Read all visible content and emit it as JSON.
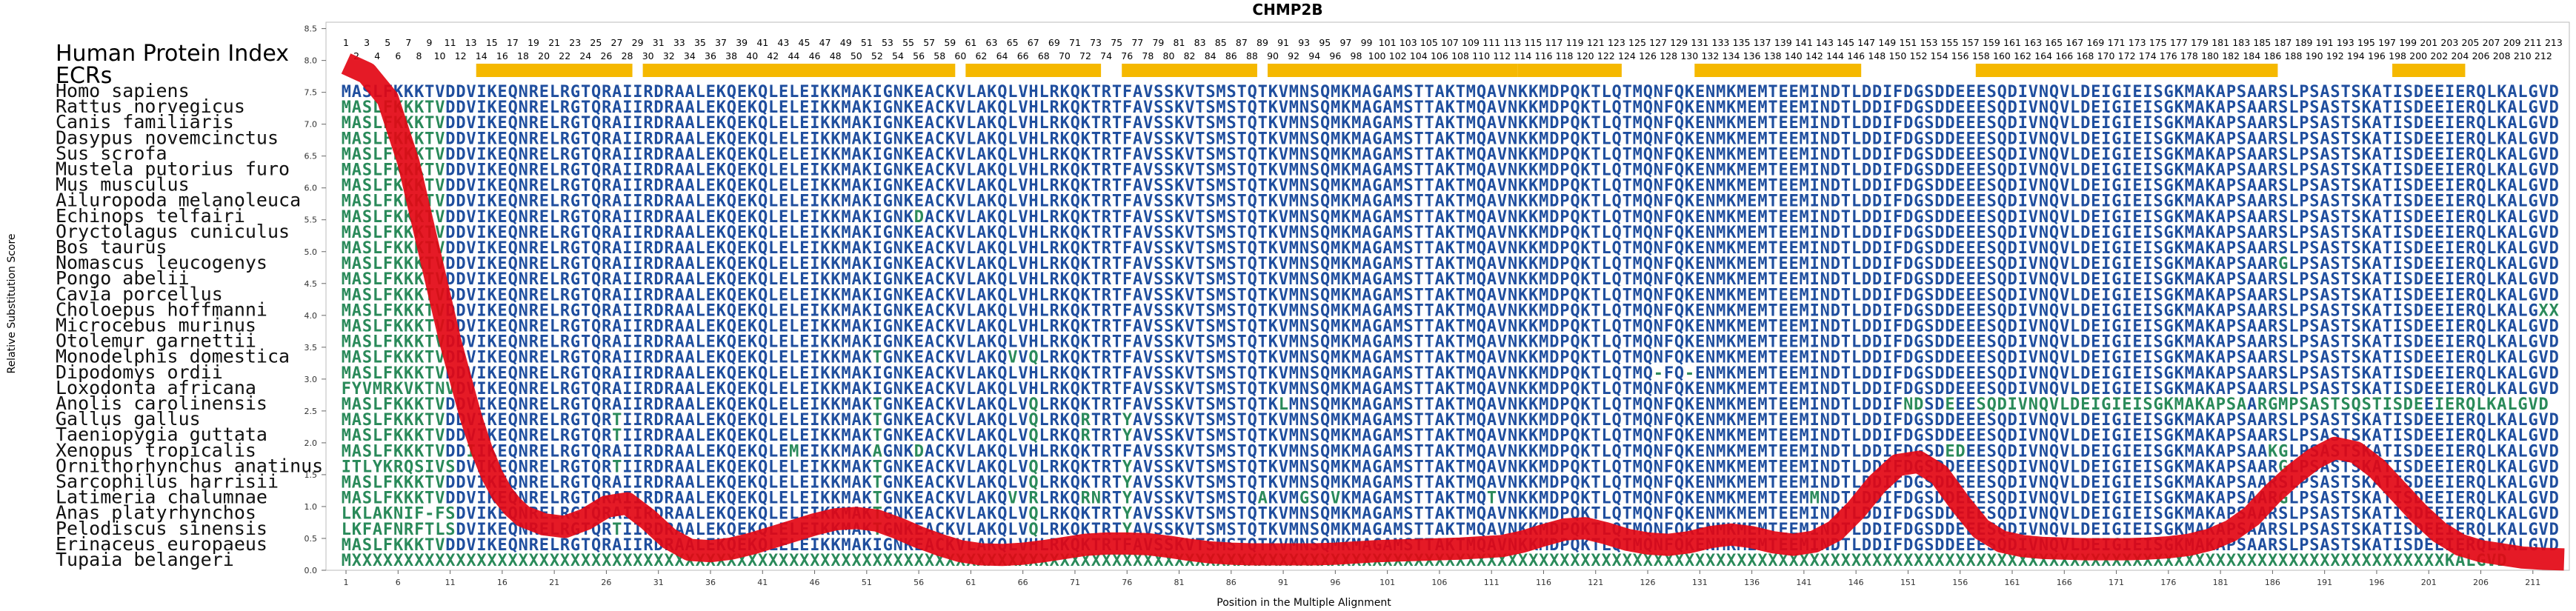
{
  "chart_data": {
    "type": "line",
    "title": "CHMP2B",
    "xlabel": "Position in the Multiple Alignment",
    "ylabel": "Relative Substitution Score",
    "ylim": [
      0,
      8.6
    ],
    "xlim": [
      0.5,
      214.5
    ],
    "yticks": [
      "0.0",
      "0.5",
      "1.0",
      "1.5",
      "2.0",
      "2.5",
      "3.0",
      "3.5",
      "4.0",
      "4.5",
      "5.0",
      "5.5",
      "6.0",
      "6.5",
      "7.0",
      "7.5",
      "8.0",
      "8.5"
    ],
    "xticks": [
      1,
      6,
      11,
      16,
      21,
      26,
      31,
      36,
      41,
      46,
      51,
      56,
      61,
      66,
      71,
      76,
      81,
      86,
      91,
      96,
      101,
      106,
      111,
      116,
      121,
      126,
      131,
      136,
      141,
      146,
      151,
      156,
      161,
      166,
      171,
      176,
      181,
      186,
      191,
      196,
      201,
      206,
      211
    ],
    "index_label": "Human Protein Index",
    "ecr_label": "ECRs",
    "ecr_ranges": [
      [
        14,
        28
      ],
      [
        30,
        59
      ],
      [
        61,
        73
      ],
      [
        76,
        88
      ],
      [
        90,
        113
      ],
      [
        114,
        123
      ],
      [
        131,
        146
      ],
      [
        158,
        186
      ],
      [
        198,
        204
      ]
    ],
    "top_index_row1": [
      1,
      3,
      5,
      7,
      9,
      11,
      13,
      15,
      17,
      19,
      21,
      23,
      25,
      27,
      29,
      31,
      33,
      35,
      37,
      39,
      41,
      43,
      45,
      47,
      49,
      51,
      53,
      55,
      57,
      59,
      61,
      63,
      65,
      67,
      69,
      71,
      73,
      75,
      77,
      79,
      81,
      83,
      85,
      87,
      89,
      91,
      93,
      95,
      97,
      99,
      101,
      103,
      105,
      107,
      109,
      111,
      113,
      115,
      117,
      119,
      121,
      123,
      125,
      127,
      129,
      131,
      133,
      135,
      137,
      139,
      141,
      143,
      145,
      147,
      149,
      151,
      153,
      155,
      157,
      159,
      161,
      163,
      165,
      167,
      169,
      171,
      173,
      175,
      177,
      179,
      181,
      183,
      185,
      187,
      189,
      191,
      193,
      195,
      197,
      199,
      201,
      203,
      205,
      207,
      209,
      211,
      213
    ],
    "top_index_row2": [
      2,
      4,
      6,
      8,
      10,
      12,
      14,
      16,
      18,
      20,
      22,
      24,
      26,
      28,
      30,
      32,
      34,
      36,
      38,
      40,
      42,
      44,
      46,
      48,
      50,
      52,
      54,
      56,
      58,
      60,
      62,
      64,
      66,
      68,
      70,
      72,
      74,
      76,
      78,
      80,
      82,
      84,
      86,
      88,
      90,
      92,
      94,
      96,
      98,
      100,
      102,
      104,
      106,
      108,
      110,
      112,
      114,
      116,
      118,
      120,
      122,
      124,
      126,
      128,
      130,
      132,
      134,
      136,
      138,
      140,
      142,
      144,
      146,
      148,
      150,
      152,
      154,
      156,
      158,
      160,
      162,
      164,
      166,
      168,
      170,
      172,
      174,
      176,
      178,
      180,
      182,
      184,
      186,
      188,
      190,
      192,
      194,
      196,
      198,
      200,
      202,
      204,
      206,
      208,
      210,
      212
    ],
    "series": [
      {
        "x": [
          1,
          3,
          5,
          7,
          9,
          10,
          11,
          12,
          13,
          14,
          15,
          16,
          17,
          18,
          20,
          22,
          24,
          26,
          28,
          30,
          32,
          34,
          36,
          38,
          40,
          42,
          44,
          46,
          48,
          50,
          52,
          54,
          56,
          58,
          60,
          62,
          64,
          66,
          68,
          70,
          72,
          74,
          76,
          78,
          80,
          82,
          84,
          86,
          88,
          90,
          92,
          94,
          96,
          98,
          100,
          102,
          104,
          106,
          108,
          110,
          112,
          114,
          116,
          118,
          120,
          122,
          124,
          126,
          128,
          130,
          132,
          134,
          136,
          138,
          140,
          142,
          144,
          146,
          148,
          150,
          152,
          154,
          156,
          158,
          160,
          162,
          164,
          166,
          168,
          170,
          172,
          174,
          176,
          178,
          180,
          182,
          184,
          186,
          188,
          190,
          192,
          194,
          196,
          198,
          200,
          202,
          204,
          206,
          208,
          210,
          212,
          214
        ],
        "y": [
          7.95,
          7.8,
          7.4,
          6.4,
          5.0,
          4.3,
          3.6,
          3.0,
          2.4,
          1.9,
          1.5,
          1.2,
          1.0,
          0.85,
          0.72,
          0.68,
          0.8,
          1.0,
          1.05,
          0.8,
          0.5,
          0.32,
          0.3,
          0.34,
          0.42,
          0.52,
          0.62,
          0.72,
          0.8,
          0.82,
          0.78,
          0.66,
          0.52,
          0.4,
          0.3,
          0.25,
          0.24,
          0.26,
          0.3,
          0.35,
          0.4,
          0.42,
          0.42,
          0.41,
          0.37,
          0.32,
          0.28,
          0.26,
          0.25,
          0.25,
          0.25,
          0.25,
          0.26,
          0.28,
          0.3,
          0.31,
          0.32,
          0.33,
          0.34,
          0.36,
          0.38,
          0.45,
          0.55,
          0.64,
          0.66,
          0.58,
          0.48,
          0.42,
          0.4,
          0.44,
          0.52,
          0.56,
          0.52,
          0.44,
          0.4,
          0.45,
          0.62,
          0.95,
          1.35,
          1.65,
          1.7,
          1.5,
          1.05,
          0.65,
          0.45,
          0.38,
          0.35,
          0.34,
          0.33,
          0.33,
          0.33,
          0.34,
          0.36,
          0.4,
          0.48,
          0.62,
          0.85,
          1.2,
          1.5,
          1.75,
          1.92,
          1.85,
          1.6,
          1.25,
          0.9,
          0.6,
          0.4,
          0.3,
          0.25,
          0.2,
          0.18,
          0.17
        ]
      }
    ],
    "species": [
      "Homo sapiens",
      "Rattus norvegicus",
      "Canis familiaris",
      "Dasypus novemcinctus",
      "Sus scrofa",
      "Mustela putorius furo",
      "Mus musculus",
      "Ailuropoda melanoleuca",
      "Echinops telfairi",
      "Oryctolagus cuniculus",
      "Bos taurus",
      "Nomascus leucogenys",
      "Pongo abelii",
      "Cavia porcellus",
      "Choloepus hoffmanni",
      "Microcebus murinus",
      "Otolemur garnettii",
      "Monodelphis domestica",
      "Dipodomys ordii",
      "Loxodonta africana",
      "Anolis carolinensis",
      "Gallus gallus",
      "Taeniopygia guttata",
      "Xenopus tropicalis",
      "Ornithorhynchus anatinus",
      "Sarcophilus harrisii",
      "Latimeria chalumnae",
      "Anas platyrhynchos",
      "Pelodiscus sinensis",
      "Erinaceus europaeus",
      "Tupaia belangeri"
    ],
    "sequences": [
      "MASLFKKKTVDDVIKEQNRELRGTQRAIIRDRAALEKQEKQLELEIKKMAKIGNKEACKVLAKQLVHLRKQKTRTFAVSSKVTSMSTQTKVMNSQMKMAGAMSTTAKTMQAVNKKMDPQKTLQTMQNFQKENMKMEMTEEMINDTLDDIFDGSDDEEESQDIVNQVLDEIGIEISGKMAKAPSAARSLPSASTSKATISDEEIERQLKALGVD",
      "MASLFKKKTVDDVIKEQNRELRGTQRAIIRDRAALEKQEKQLELEIKKMAKIGNKEACKVLAKQLVHLRKQKTRTFAVSSKVTSMSTQTKVMNSQMKMAGAMSTTAKTMQAVNKKMDPQKTLQTMQNFQKENMKMEMTEEMINDTLDDIFDGSDDEEESQDIVNQVLDEIGIEISGKMAKAPSAARSLPSASTSKATISDEEIERQLKALGVD",
      "MASLFKKKTVDDVIKEQNRELRGTQRAIIRDRAALEKQEKQLELEIKKMAKIGNKEACKVLAKQLVHLRKQKTRTFAVSSKVTSMSTQTKVMNSQMKMAGAMSTTAKTMQAVNKKMDPQKTLQTMQNFQKENMKMEMTEEMINDTLDDIFDGSDDEEESQDIVNQVLDEIGIEISGKMAKAPSAARSLPSASTSKATISDEEIERQLKALGVD",
      "MASLFKKKTVDDVIKEQNRELRGTQRAIIRDRAALEKQEKQLELEIKKMAKIGNKEACKVLAKQLVHLRKQKTRTFAVSSKVTSMSTQTKVMNSQMKMAGAMSTTAKTMQAVNKKMDPQKTLQTMQNFQKENMKMEMTEEMINDTLDDIFDGSDDEEESQDIVNQVLDEIGIEISGKMAKAPSAARSLPSASTSKATISDEEIERQLKALGVD",
      "MASLFKKKTVDDVIKEQNRELRGTQRAIIRDRAALEKQEKQLELEIKKMAKIGNKEACKVLAKQLVHLRKQKTRTFAVSSKVTSMSTQTKVMNSQMKMAGAMSTTAKTMQAVNKKMDPQKTLQTMQNFQKENMKMEMTEEMINDTLDDIFDGSDDEEESQDIVNQVLDEIGIEISGKMAKAPSAARSLPSASTSKATISDEEIERQLKALGVD",
      "MASLFKKKTVDDVIKEQNRELRGTQRAIIRDRAALEKQEKQLELEIKKMAKIGNKEACKVLAKQLVHLRKQKTRTFAVSSKVTSMSTQTKVMNSQMKMAGAMSTTAKTMQAVNKKMDPQKTLQTMQNFQKENMKMEMTEEMINDTLDDIFDGSDDEEESQDIVNQVLDEIGIEISGKMAKAPSAARSLPSASTSKATISDEEIERQLKALGVD",
      "MASLFKKKTVDDVIKEQNRELRGTQRAIIRDRAALEKQEKQLELEIKKMAKIGNKEACKVLAKQLVHLRKQKTRTFAVSSKVTSMSTQTKVMNSQMKMAGAMSTTAKTMQAVNKKMDPQKTLQTMQNFQKENMKMEMTEEMINDTLDDIFDGSDDEEESQDIVNQVLDEIGIEISGKMAKAPSAARSLPSASTSKATISDEEIERQLKALGVD",
      "MASLFKKKTVDDVIKEQNRELRGTQRAIIRDRAALEKQEKQLELEIKKMAKIGNKEACKVLAKQLVHLRKQKTRTFAVSSKVTSMSTQTKVMNSQMKMAGAMSTTAKTMQAVNKKMDPQKTLQTMQNFQKENMKMEMTEEMINDTLDDIFDGSDDEEESQDIVNQVLDEIGIEISGKMAKAPSAARSLPSASTSKATISDEEIERQLKALGVD",
      "MASLFKKKTVDDVIKEQNRELRGTQRAIIRDRAALEKQEKQLELEIKKMAKIGNKDACKVLAKQLVHLRKQKTRTFAVSSKVTSMSTQTKVMNSQMKMAGAMSTTAKTMQAVNKKMDPQKTLQTMQNFQKENMKMEMTEEMINDTLDDIFDGSDDEEESQDIVNQVLDEIGIEISGKMAKAPSAARSLPSASTSKATISDEEIERQLKALGVD",
      "MASLFKKKTVDDVIKEQNRELRGTQRAIIRDRAALEKQEKQLELEIKKMAKIGNKEACKVLAKQLVHLRKQKTRTFAVSSKVTSMSTQTKVMNSQMKMAGAMSTTAKTMQAVNKKMDPQKTLQTMQNFQKENMKMEMTEEMINDTLDDIFDGSDDEEESQDIVNQVLDEIGIEISGKMAKAPSAARSLPSASTSKATISDEEIERQLKALGVD",
      "MASLFKKKTVDDVIKEQNRELRGTQRAIIRDRAALEKQEKQLELEIKKMAKIGNKEACKVLAKQLVHLRKQKTRTFAVSSKVTSMSTQTKVMNSQMKMAGAMSTTAKTMQAVNKKMDPQKTLQTMQNFQKENMKMEMTEEMINDTLDDIFDGSDDEEESQDIVNQVLDEIGIEISGKMAKAPSAARSLPSASTSKATISDEEIERQLKALGVD",
      "MASLFKKKTVDDVIKEQNRELRGTQRAIIRDRAALEKQEKQLELEIKKMAKIGNKEACKVLAKQLVHLRKQKTRTFAVSSKVTSMSTQTKVMNSQMKMAGAMSTTAKTMQAVNKKMDPQKTLQTMQNFQKENMKMEMTEEMINDTLDDIFDGSDDEEESQDIVNQVLDEIGIEISGKMAKAPSAARGLPSASTSKATISDEEIERQLKALGVD",
      "MASLFKKKTVDDVIKEQNRELRGTQRAIIRDRAALEKQEKQLELEIKKMAKIGNKEACKVLAKQLVHLRKQKTRTFAVSSKVTSMSTQTKVMNSQMKMAGAMSTTAKTMQAVNKKMDPQKTLQTMQNFQKENMKMEMTEEMINDTLDDIFDGSDDEEESQDIVNQVLDEIGIEISGKMAKAPSAARSLPSASTSKATISDEEIERQLKALGVD",
      "MASLFKKKTVDDVIKEQNRELRGTQRAIIRDRAALEKQEKQLELEIKKMAKIGNKEACKVLAKQLVHLRKQKTRTFAVSSKVTSMSTQTKVMNSQMKMAGAMSTTAKTMQAVNKKMDPQKTLQTMQNFQKENMKMEMTEEMINDTLDDIFDGSDDEEESQDIVNQVLDEIGIEISGKMAKAPSAARSLPSASTSKATISDEEIERQLKALGVD",
      "MASLFKKKTVDDVIKEQNRELRGTQRAIIRDRAALEKQEKQLELEIKKMAKIGNKEACKVLAKQLVHLRKQKTRTFAVSSKVTSMSTQTKVMNSQMKMAGAMSTTAKTMQAVNKKMDPQKTLQTMQNFQKENMKMEMTEEMINDTLDDIFDGSDDEEESQDIVNQVLDEIGIEISGKMAKAPSAARSLPSASTSKATISDEEIERQLKALGXX",
      "MASLFKKKTVDDVIKEQNRELRGTQRAIIRDRAALEKQEKQLELEIKKMAKIGNKEACKVLAKQLVHLRKQKTRTFAVSSKVTSMSTQTKVMNSQMKMAGAMSTTAKTMQAVNKKMDPQKTLQTMQNFQKENMKMEMTEEMINDTLDDIFDGSDDEEESQDIVNQVLDEIGIEISGKMAKAPSAARSLPSASTSKATISDEEIERQLKALGVD",
      "MASLFKKKTVDDVIKEQNRELRGTQRAIIRDRAALEKQEKQLELEIKKMAKIGNKEACKVLAKQLVHLRKQKTRTFAVSSKVTSMSTQTKVMNSQMKMAGAMSTTAKTMQAVNKKMDPQKTLQTMQNFQKENMKMEMTEEMINDTLDDIFDGSDDEEESQDIVNQVLDEIGIEISGKMAKAPSAARSLPSASTSKATISDEEIERQLKALGVD",
      "MASLFKKKTVDDVIKEQNRELRGTQRAIIRDRAALEKQEKQLELEIKKMAKTGNKEACKVLAKQVVQLRKQKTRTFAVSSKVTSMSTQTKVMNSQMKMAGAMSTTAKTMQAVNKKMDPQKTLQTMQNFQKENMKMEMTEEMINDTLDDIFDGSDDEEESQDIVNQVLDEIGIEISGKMAKAPSAARSLPSASTSKATISDEEIERQLKALGVD",
      "MASLFKKKTVDDVIKEQNRELRGTQRAIIRDRAALEKQEKQLELEIKKMAKIGNKEACKVLAKQLVHLRKQKTRTFAVSSKVTSMSTQTKVMNSQMKMAGAMSTTAKTMQAVNKKMDPQKTLQTMQ-FQ-ENMKMEMTEEMINDTLDDIFDGSDDEEESQDIVNQVLDEIGIEISGKMAKAPSAARSLPSASTSKATISDEEIERQLKALGVD",
      "FYVMRKVKTNVDVIKEQNRELRGTQRAIIRDRAALEKQEKQLELEIKKMAKIGNKEACKVLAKQLVHLRKQKTRTFAVSSKVTSMSTQTKVMNSQMKMAGAMSTTAKTMQAVNKKMDPQKTLQTMQNFQKENMKMEMTEEMINDTLDDIFDGSDDEEESQDIVNQVLDEIGIEISGKMAKAPSAARSLPSASTSKATISDEEIERQLKALGVD",
      "MASLFKKKTVDDVIKEQNRELRGTQRAIIRDRAALEKQEKQLELEIKKMAKTGNKEACKVLAKQLVQLRKQKTRTFAVSSKVTSMSTQTKLMNSQMKMAGAMSTTAKTMQAVNKKMDPQKTLQTMQNFQKENMKMEMTEEMINDTLDDIFNDSDEEESQDIVNQVLDEIGIEISGKMAKAPSAARGMPSASTSQSTISDEEIERQLKALGVD",
      "MASLFKKKTVDDVIKEQNRELRGTQRTIIRDRAALEKQEKQLELEIKKMAKTGNKEACKVLAKQLVQLRKQRTRTYAVSSKVTSMSTQTKVMNSQMKMAGAMSTTAKTMQAVNKKMDPQKTLQTMQNFQKENMKMEMTEEMINDTLDDIFDGSDDEEESQDIVNQVLDEIGIEISGKMAKAPSAARSLPSASTSKATISDEEIERQLKALGVD",
      "MASLFKKKTVDDVIKEQNRELRGTQRTIIRDRAALEKQEKQLELEIKKMAKTGNKEACKVLAKQLVQLRKQRTRTYAVSSKVTSMSTQTKVMNSQMKMAGAMSTTAKTMQAVNKKMDPQKTLQTMQNFQKENMKMEMTEEMINDTLDDIFDGSDDEEESQDIVNQVLDEIGIEISGKMAKAPSAARSLPSASTSKATISDEEIERQLKALGVD",
      "MASLFKKKTVDDIIKEQNRELRGTQRAIIRDRAALEKQEKQLEMEIKKMAKAGNKDACKVLAKQLVHLRKQKTRTFAVSSKVTSMSTQTKVMNSQMKMAGAMSTTAKTMQAVNKKMDPQKTLQTMQNFQKENMKMEMTEEMINDTLDDIFDGSDEDEESQDIVNQVLDEIGIEISGKMAKAPSAAKGLPSASTSKATISDEEIERQLKALGVD",
      "ITLYKRQSIVSDVIKEQNRELRGTQRTIIRDRAALEKQEKQLELEIKKMAKTGNKEACKVLAKQLVQLRKQKTRTYAVSSKVTSMSTQTKVMNSQMKMAGAMSTTAKTMQAVNKKMDPQKTLQTMQNFQKENMKMEMTEEMINDTLDDIFDGSDDEEESQDIVNQVLDEIGIEISGKMAKAPSAARGLPSASTSKATISDEEIERQLKALGVD",
      "MASLFKKKTVDDVIKEQNRELRGTQRAIIRDRAALEKQEKQLELEIKKMAKTGNKEACKVLAKQLVQLRKQKTRTYAVSSKVTSMSTQTKVMNSQMKMAGAMSTTAKTMQAVNKKMDPQKTLQTMQNFQKENMKMEMTEEMINDTLDDIFDGSDDEEESQDIVNQVLDEIGIEISGKMAKAPSAARSLPSASTSKATISDEEIERQLKALGVD",
      "MASLFKKKTVDDVIKEQNRELRGTQRAIIRDRAALEKQEKQLELEIKKMAKTGNKEACKVLAKQVVRLRKQRNRTYAVSSKVTSMSTQAKVMGSQVKMAGAMSTTAKTMQTVNKKMDPQKTLQTMQNFQKENMKMEMTEEMMNDTLDDIFDGSDDEEESQDIVNQVLDEIGIEISGKMAKAPSAARGLPSASTSKATISDEEIERQLKALGVD",
      "LKLAKNIF-FSDVIKEQNRELRGTQRAIIRDRAALEKQEKQLELEIKKMAKTGNKEACKVLAKQLVQLRKQKTRTYAVSSKVTSMSTQTKVMNSQMKMAGAMSTTAKTMQAVNKKMDPQKTLQTMQNFQKENMKMEMTEEMINDTLDDIFDGSDDEEESQDIVNQVLDEIGIEISGKMAKAPSAARSLPSASTSKATISDEEIERQLKALGVD",
      "LKFAFNRFTLSDVIKEQNRELRGTQRTIIRDRAALEKQEKQLELEIKKMAKTGNKEACKVLAKQLVQLRKQKTRTYAVSSKVTSMSTQTKVMNSQMKMAGAMSTTAKTMQAVNKKMDPQKTLQTMQNFQKENMKMEMTEEMINDTLDDIFDGSDDEEESQDIVNQVLDEIGIEISGKMAKAPSAARSLPSASTSKATISDEEIERQLKALGVD",
      "MASLFKKKTVDDVIKEQNRELRGTQRAIIRDRAALEKQEKQLELEIKKMAKIGNKEACKVLAKQLVHLRKQKTRTFAVSSKVTSMSTQTKVMNSQMKMAGAMSTTAKTMQAVNKKMDPQKTLQTMQNFQKENMKMEMTEEMINDTLDDIFDGSDDEEESQDIVNQVLDEIGIEISGKMAKAPSAARSLPSASTSKATISDEEIERQLKALGVD",
      "MXXXXXXXXXXXXXXXXXXXXXXXXXXXXXXXXXXXXXXXXXXXXXXXXXXXXXXXXXXXXXXXXXXXXXXXXXXXXXXXXXXXXXXXXXXXXXXXXXXXXXXXXXXXXXXXXXXXXXXXXXXXXXXXXXXXXXXXXXXXXXXXXXXXXXXXXXXXXXXXXXXXXXXXXXXXXXXXXXXXXXXXXXXXXXXXXXXXXXXXXXKALGVD"
    ]
  },
  "colors": {
    "curve": "#e30613",
    "ecr": "#f5b800",
    "seq_default": "#1f4e9e",
    "seq_variable": "#2a8a5a"
  }
}
